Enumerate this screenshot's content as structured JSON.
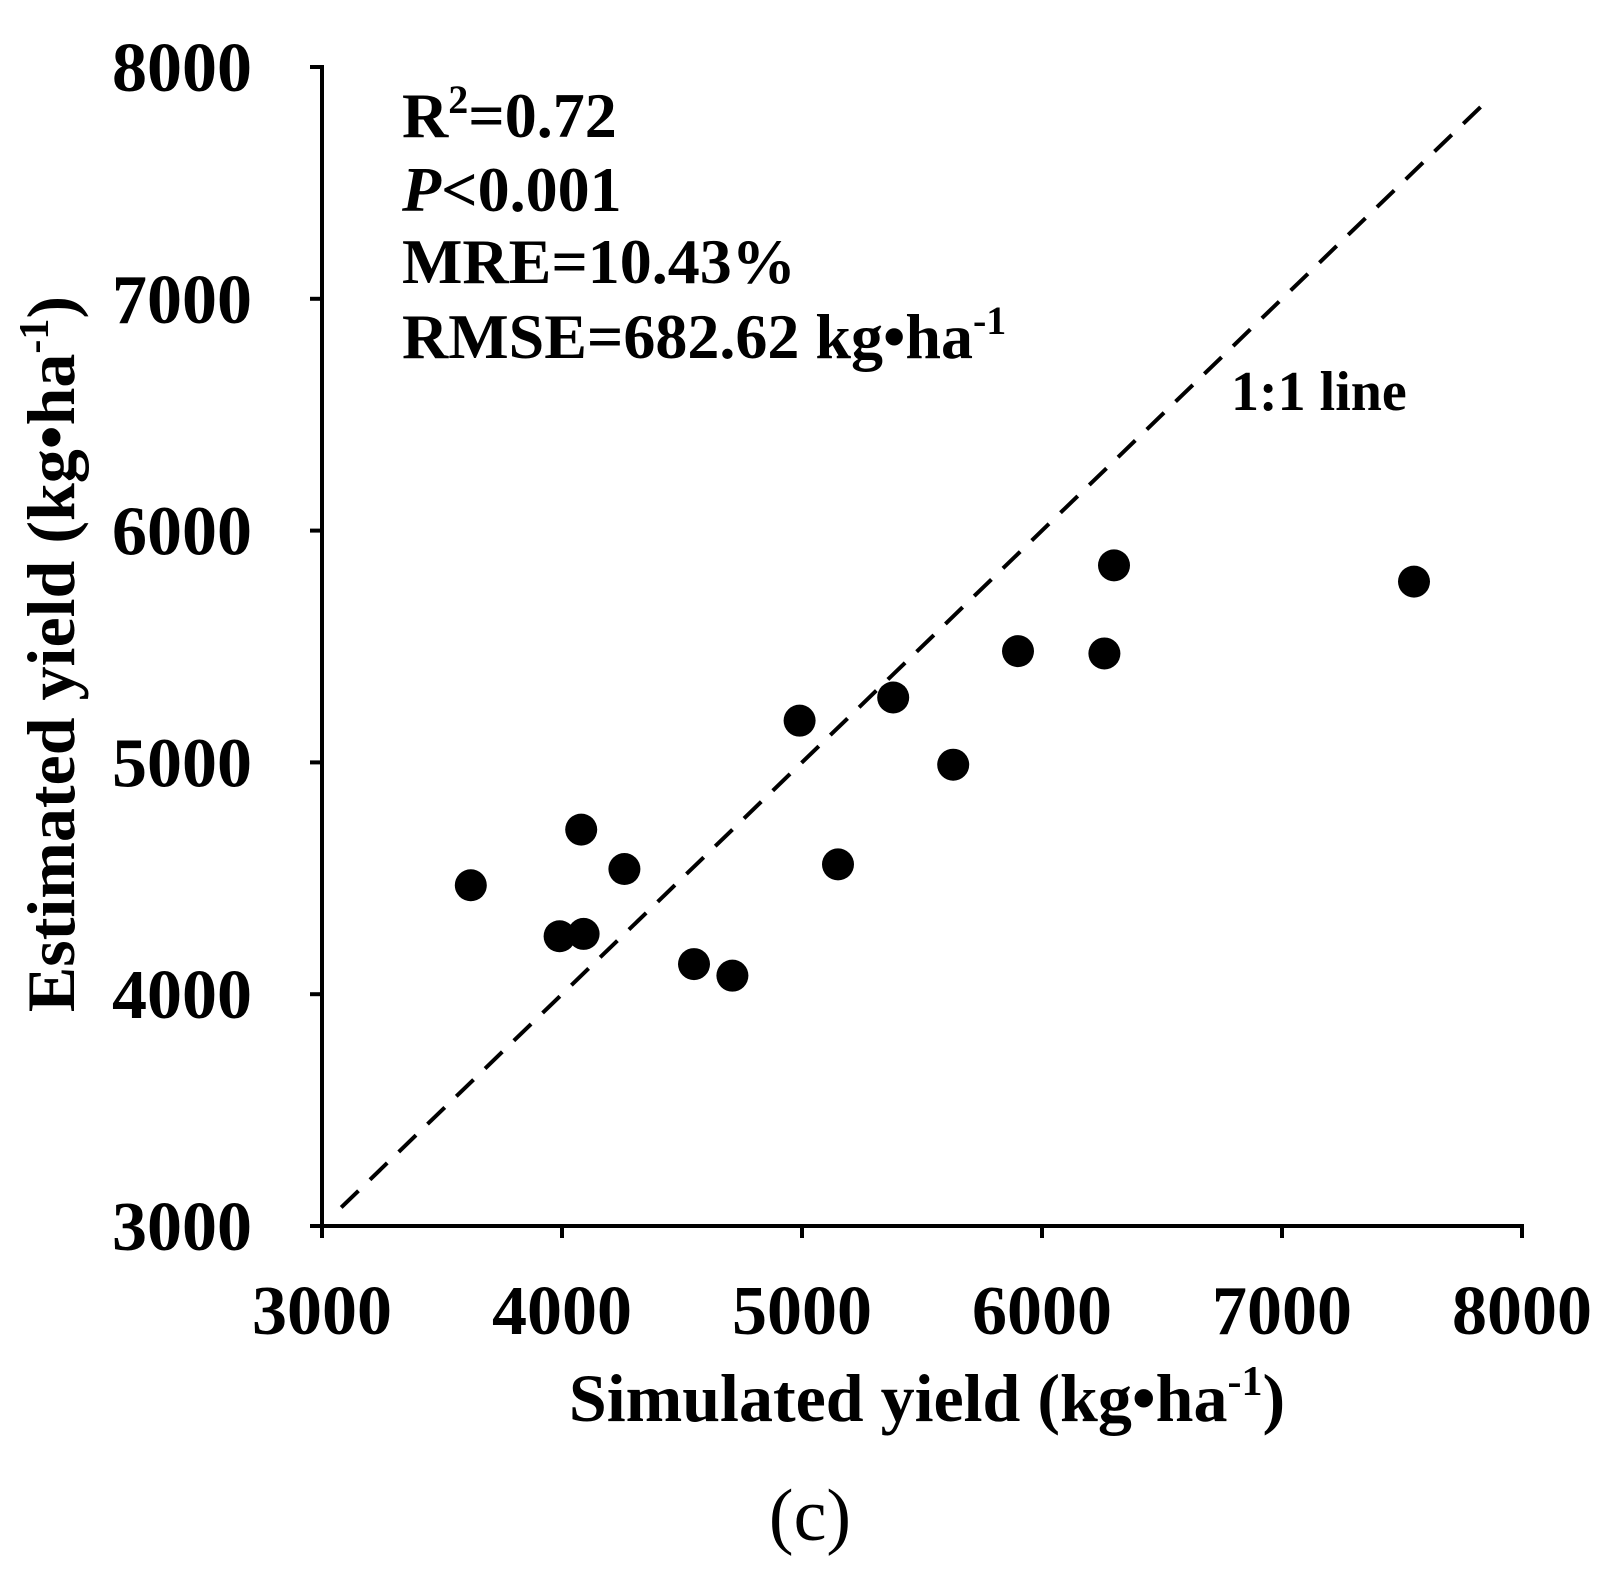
{
  "chart_data": {
    "type": "scatter",
    "title": "",
    "xlabel": {
      "text": "Simulated yield (kg•ha",
      "sup": "-1",
      "close": ")"
    },
    "ylabel": {
      "text": "Estimated yield (kg•ha",
      "sup": "-1",
      "close": ")"
    },
    "xlim": [
      3000,
      8000
    ],
    "ylim": [
      3000,
      8000
    ],
    "xticks": [
      "3000",
      "4000",
      "5000",
      "6000",
      "7000",
      "8000"
    ],
    "yticks": [
      "3000",
      "4000",
      "5000",
      "6000",
      "7000",
      "8000"
    ],
    "grid": false,
    "series": [
      {
        "x": [
          3620,
          3990,
          4090,
          4080,
          4260,
          4550,
          4710,
          4990,
          5150,
          5380,
          5630,
          5900,
          6260,
          6300,
          7550
        ],
        "y": [
          4470,
          4250,
          4260,
          4710,
          4540,
          4130,
          4080,
          5180,
          4560,
          5280,
          4990,
          5480,
          5470,
          5850,
          5780
        ]
      }
    ],
    "reference_line": {
      "label": "1:1 line",
      "x": [
        3080,
        7860
      ],
      "y": [
        3080,
        7860
      ]
    },
    "annotations": {
      "r2": {
        "symbol": "R",
        "sup": "2",
        "value": "=0.72"
      },
      "p": {
        "symbol": "P",
        "value": "<0.001"
      },
      "mre": "MRE=10.43%",
      "rmse": {
        "value": "RMSE=682.62",
        "unit": " kg•ha",
        "sup": "-1"
      }
    }
  },
  "panel_label": "(c)",
  "colors": {
    "marker": "#000000",
    "axis": "#000000",
    "text": "#000000",
    "background": "#ffffff"
  }
}
